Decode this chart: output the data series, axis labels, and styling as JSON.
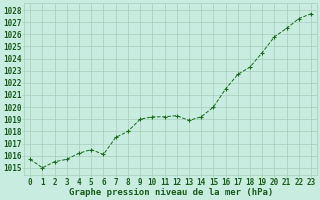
{
  "x": [
    0,
    1,
    2,
    3,
    4,
    5,
    6,
    7,
    8,
    9,
    10,
    11,
    12,
    13,
    14,
    15,
    16,
    17,
    18,
    19,
    20,
    21,
    22,
    23
  ],
  "y": [
    1015.7,
    1015.0,
    1015.5,
    1015.7,
    1016.2,
    1016.5,
    1016.1,
    1017.5,
    1018.0,
    1019.0,
    1019.2,
    1019.2,
    1019.3,
    1018.9,
    1019.2,
    1020.0,
    1021.5,
    1022.7,
    1023.3,
    1024.5,
    1025.8,
    1026.5,
    1027.3,
    1027.7
  ],
  "line_color": "#1a6b1a",
  "marker": "+",
  "bg_color": "#c8ede0",
  "grid_color": "#a8ccbc",
  "xlabel": "Graphe pression niveau de la mer (hPa)",
  "ylabel_ticks": [
    1015,
    1016,
    1017,
    1018,
    1019,
    1020,
    1021,
    1022,
    1023,
    1024,
    1025,
    1026,
    1027,
    1028
  ],
  "ylim": [
    1014.4,
    1028.6
  ],
  "xlim": [
    -0.5,
    23.5
  ],
  "text_color": "#1a5c1a",
  "xlabel_fontsize": 6.5,
  "tick_fontsize": 5.5
}
